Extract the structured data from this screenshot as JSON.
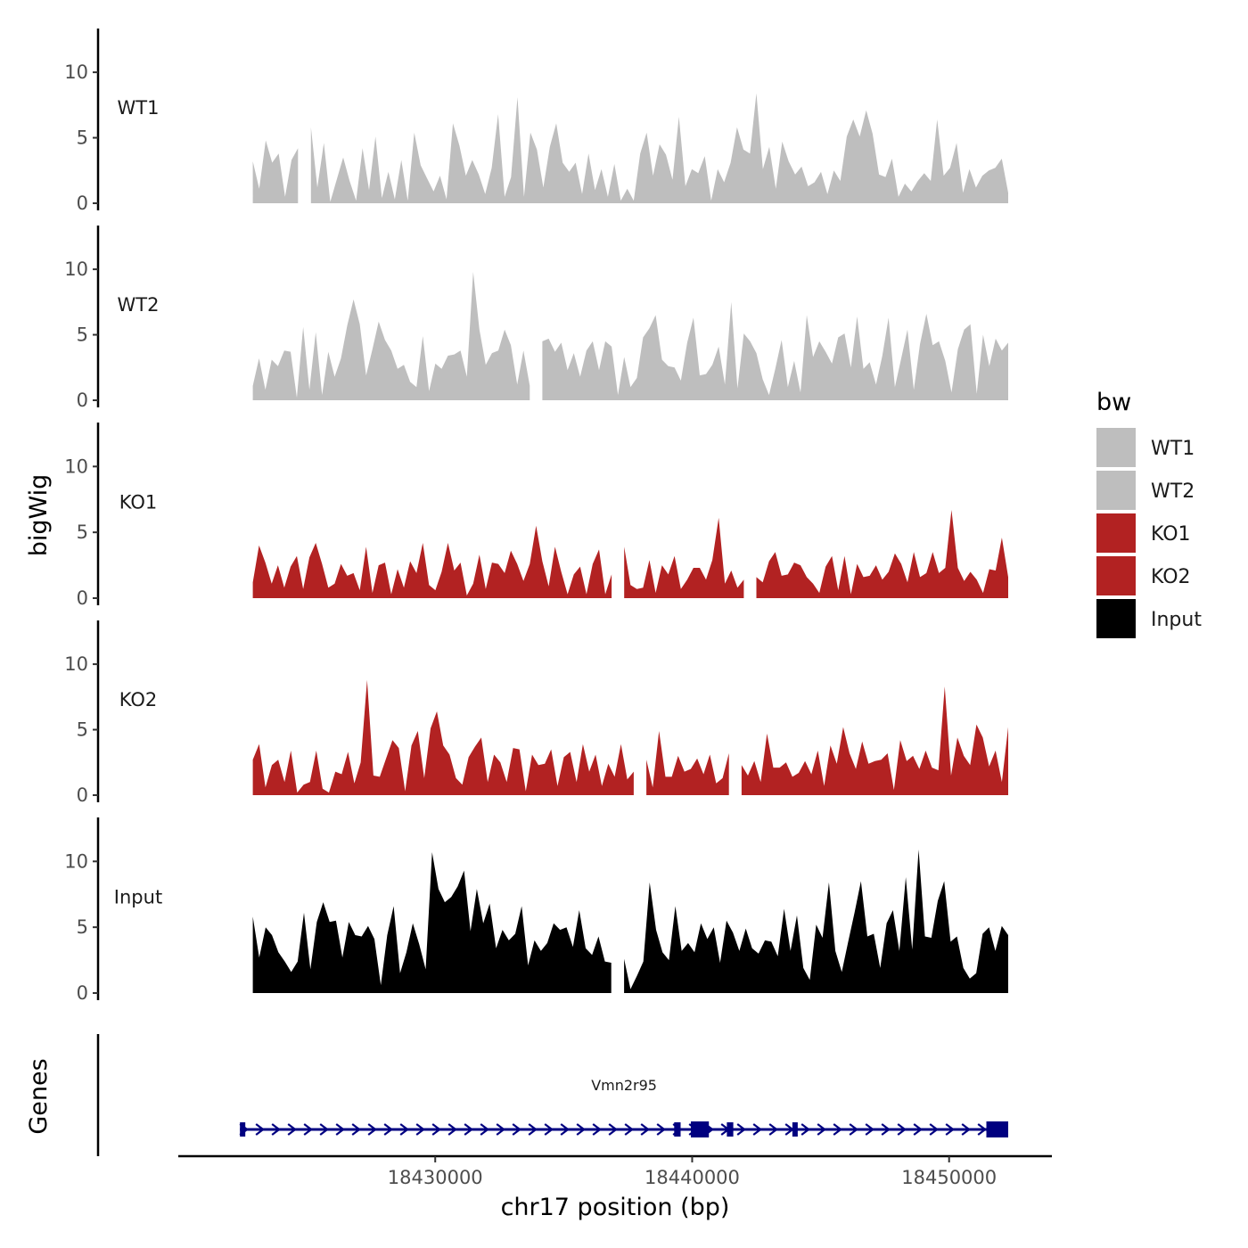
{
  "chart_data": {
    "type": "area",
    "chromosome": "chr17",
    "xlabel": "chr17 position (bp)",
    "ylabel": "bigWig",
    "genes_label": "Genes",
    "xlim": [
      18420000,
      18454000
    ],
    "data_range": [
      18422900,
      18452300
    ],
    "ylim": [
      0,
      13
    ],
    "y_ticks": [
      0,
      5,
      10
    ],
    "x_ticks": [
      18430000,
      18440000,
      18450000
    ],
    "x_tick_labels": [
      "18430000",
      "18440000",
      "18450000"
    ],
    "legend": {
      "title": "bw",
      "position": "right",
      "entries": [
        {
          "label": "WT1",
          "color": "#bebebe"
        },
        {
          "label": "WT2",
          "color": "#bebebe"
        },
        {
          "label": "KO1",
          "color": "#b22222"
        },
        {
          "label": "KO2",
          "color": "#b22222"
        },
        {
          "label": "Input",
          "color": "#000000"
        }
      ]
    },
    "series": [
      {
        "name": "WT1",
        "color": "#bebebe",
        "values": [
          3.2,
          1.1,
          4.8,
          3.1,
          3.8,
          0.5,
          3.3,
          4.2,
          0.3,
          5.8,
          1.2,
          4.6,
          0.1,
          1.8,
          3.5,
          1.7,
          0.2,
          4.2,
          1.0,
          5.1,
          0.4,
          2.4,
          0.3,
          3.3,
          0.2,
          5.4,
          2.9,
          1.9,
          0.9,
          2.1,
          0.3,
          6.1,
          4.4,
          2.1,
          3.3,
          2.2,
          0.7,
          2.7,
          6.8,
          0.5,
          2.0,
          8.1,
          0.5,
          5.4,
          4.1,
          1.2,
          4.3,
          6.1,
          3.1,
          2.4,
          3.1,
          0.7,
          3.8,
          1.0,
          2.6,
          0.5,
          3.0,
          0.2,
          1.1,
          0.2,
          3.8,
          5.4,
          2.1,
          4.5,
          3.7,
          1.8,
          6.6,
          1.3,
          2.6,
          2.3,
          3.6,
          0.2,
          2.6,
          1.6,
          3.1,
          5.8,
          4.1,
          3.8,
          8.4,
          2.6,
          4.3,
          1.1,
          4.7,
          3.2,
          2.2,
          2.8,
          1.3,
          1.6,
          2.4,
          0.7,
          2.5,
          1.7,
          5.1,
          6.4,
          5.1,
          7.1,
          5.3,
          2.2,
          2.0,
          3.4,
          0.5,
          1.5,
          0.9,
          1.7,
          2.3,
          1.7,
          6.4,
          2.1,
          2.7,
          4.6,
          0.8,
          2.6,
          1.2,
          2.1,
          2.5,
          2.7,
          3.4,
          0.8
        ],
        "breaks": [
          8
        ]
      },
      {
        "name": "WT2",
        "color": "#bebebe",
        "values": [
          1.1,
          3.2,
          0.8,
          3.1,
          2.6,
          3.8,
          3.7,
          0.2,
          5.6,
          0.8,
          5.2,
          0.4,
          3.7,
          1.8,
          3.2,
          5.7,
          7.7,
          5.8,
          1.9,
          3.9,
          6.0,
          4.6,
          3.8,
          2.4,
          2.7,
          1.4,
          1.0,
          4.9,
          0.7,
          2.8,
          2.4,
          3.4,
          3.5,
          3.8,
          1.8,
          9.8,
          5.4,
          2.7,
          3.6,
          3.8,
          5.4,
          4.2,
          1.2,
          3.8,
          1.1,
          3.3,
          4.5,
          4.7,
          3.7,
          4.4,
          2.3,
          3.6,
          1.8,
          3.8,
          4.5,
          2.3,
          4.5,
          4.1,
          0.4,
          3.3,
          1.0,
          1.7,
          4.8,
          5.5,
          6.5,
          3.1,
          2.6,
          2.5,
          1.5,
          4.4,
          6.3,
          1.9,
          2.0,
          2.7,
          4.1,
          1.2,
          7.5,
          0.9,
          5.1,
          4.5,
          3.6,
          1.6,
          0.4,
          2.4,
          4.6,
          1.0,
          3.0,
          0.6,
          6.5,
          3.3,
          4.5,
          3.7,
          2.8,
          4.8,
          5.1,
          2.5,
          6.4,
          2.4,
          2.9,
          1.2,
          3.4,
          6.3,
          1.0,
          3.2,
          5.4,
          0.8,
          4.3,
          6.6,
          4.2,
          4.5,
          3.0,
          0.6,
          3.9,
          5.4,
          5.8,
          0.5,
          5.0,
          2.6,
          4.7,
          3.8,
          4.4
        ],
        "breaks": [
          45
        ]
      },
      {
        "name": "KO1",
        "color": "#b22222",
        "values": [
          1.2,
          4.0,
          2.7,
          1.1,
          2.5,
          0.8,
          2.4,
          3.2,
          0.7,
          3.1,
          4.2,
          2.6,
          0.8,
          1.1,
          2.6,
          1.7,
          1.9,
          0.6,
          3.9,
          0.4,
          2.5,
          2.7,
          0.3,
          2.2,
          0.8,
          2.8,
          1.9,
          4.2,
          1.0,
          0.6,
          2.0,
          4.2,
          2.1,
          2.7,
          0.2,
          1.1,
          3.3,
          0.7,
          2.7,
          2.6,
          1.9,
          3.6,
          2.6,
          1.3,
          2.6,
          5.5,
          2.8,
          0.9,
          3.9,
          2.0,
          0.3,
          1.8,
          2.4,
          0.3,
          2.6,
          3.7,
          0.3,
          1.8,
          1.7,
          3.9,
          1.0,
          0.7,
          0.8,
          2.9,
          0.4,
          2.5,
          1.8,
          3.2,
          0.7,
          1.4,
          2.3,
          2.3,
          1.4,
          2.9,
          6.1,
          1.1,
          2.1,
          0.8,
          1.4,
          1.8,
          1.6,
          1.2,
          2.8,
          3.5,
          1.7,
          1.8,
          2.7,
          2.5,
          1.6,
          1.1,
          0.4,
          2.4,
          3.2,
          0.6,
          3.2,
          0.3,
          2.6,
          1.6,
          1.7,
          2.5,
          1.4,
          2.0,
          3.4,
          2.6,
          1.2,
          3.5,
          1.6,
          1.9,
          3.5,
          1.9,
          2.3,
          6.7,
          2.3,
          1.3,
          2.0,
          1.4,
          0.4,
          2.2,
          2.1,
          4.6,
          1.6
        ],
        "breaks": [
          58,
          79
        ]
      },
      {
        "name": "KO2",
        "color": "#b22222",
        "values": [
          2.7,
          3.9,
          0.6,
          2.3,
          2.7,
          1.0,
          3.4,
          0.2,
          0.8,
          1.0,
          3.4,
          0.5,
          0.2,
          1.8,
          1.6,
          3.3,
          0.9,
          2.5,
          8.8,
          1.5,
          1.4,
          2.8,
          4.2,
          3.6,
          0.3,
          3.8,
          4.9,
          1.3,
          5.1,
          6.4,
          3.8,
          3.1,
          1.3,
          0.8,
          2.9,
          3.7,
          4.4,
          1.0,
          3.1,
          2.5,
          1.0,
          3.6,
          3.5,
          0.3,
          3.1,
          2.3,
          2.4,
          3.5,
          0.7,
          2.9,
          3.3,
          1.0,
          3.9,
          1.8,
          3.1,
          0.7,
          2.4,
          1.4,
          3.9,
          1.2,
          1.8,
          0.2,
          2.7,
          0.6,
          4.9,
          1.4,
          1.4,
          3.0,
          1.8,
          2.0,
          2.8,
          1.6,
          3.1,
          0.9,
          1.3,
          3.2,
          1.4,
          2.3,
          1.5,
          2.6,
          1.0,
          4.7,
          2.1,
          2.1,
          2.5,
          1.4,
          1.7,
          2.6,
          1.6,
          3.4,
          0.7,
          3.8,
          2.4,
          5.2,
          3.2,
          2.0,
          4.1,
          2.4,
          2.6,
          2.7,
          3.2,
          0.4,
          4.2,
          2.6,
          3.0,
          2.0,
          3.4,
          2.1,
          1.9,
          8.3,
          1.5,
          4.4,
          3.0,
          2.3,
          5.4,
          4.4,
          2.2,
          3.4,
          1.0,
          5.2
        ],
        "breaks": [
          61,
          76
        ]
      },
      {
        "name": "Input",
        "color": "#000000",
        "values": [
          5.8,
          2.7,
          5.0,
          4.4,
          3.1,
          2.4,
          1.6,
          2.4,
          6.1,
          1.8,
          5.4,
          6.9,
          5.4,
          5.5,
          2.7,
          5.4,
          4.4,
          4.3,
          5.1,
          4.1,
          0.6,
          4.4,
          6.6,
          1.5,
          3.1,
          5.3,
          3.7,
          1.8,
          10.7,
          7.9,
          6.9,
          7.3,
          8.1,
          9.3,
          4.7,
          7.9,
          5.3,
          6.8,
          3.4,
          4.8,
          4.0,
          4.5,
          6.6,
          2.1,
          4.0,
          3.2,
          3.8,
          5.3,
          4.8,
          5.0,
          3.5,
          6.3,
          3.4,
          2.9,
          4.3,
          2.4,
          2.3,
          5.3,
          2.6,
          0.3,
          1.3,
          2.4,
          8.4,
          4.8,
          3.1,
          2.5,
          6.6,
          3.2,
          3.8,
          3.1,
          5.3,
          4.1,
          5.0,
          2.3,
          5.5,
          4.6,
          3.2,
          4.9,
          3.4,
          3.0,
          4.0,
          3.9,
          2.8,
          6.4,
          3.2,
          5.9,
          1.9,
          1.0,
          5.2,
          4.2,
          8.4,
          3.2,
          1.6,
          3.9,
          6.1,
          8.5,
          4.3,
          4.5,
          1.9,
          5.3,
          6.3,
          3.2,
          8.8,
          3.3,
          10.9,
          4.3,
          4.2,
          7.0,
          8.5,
          3.9,
          4.3,
          1.9,
          1.1,
          1.5,
          4.5,
          5.0,
          3.2,
          5.1,
          4.4
        ],
        "breaks": [
          57
        ]
      }
    ],
    "genes": [
      {
        "name": "Vmn2r95",
        "strand": "+",
        "color": "#000080",
        "start": 18422400,
        "end": 18452300,
        "exons": [
          [
            18422400,
            18422600
          ],
          [
            18439300,
            18439550
          ],
          [
            18439950,
            18440650
          ],
          [
            18441350,
            18441600
          ],
          [
            18443900,
            18444050
          ],
          [
            18451450,
            18452300
          ]
        ]
      }
    ]
  }
}
